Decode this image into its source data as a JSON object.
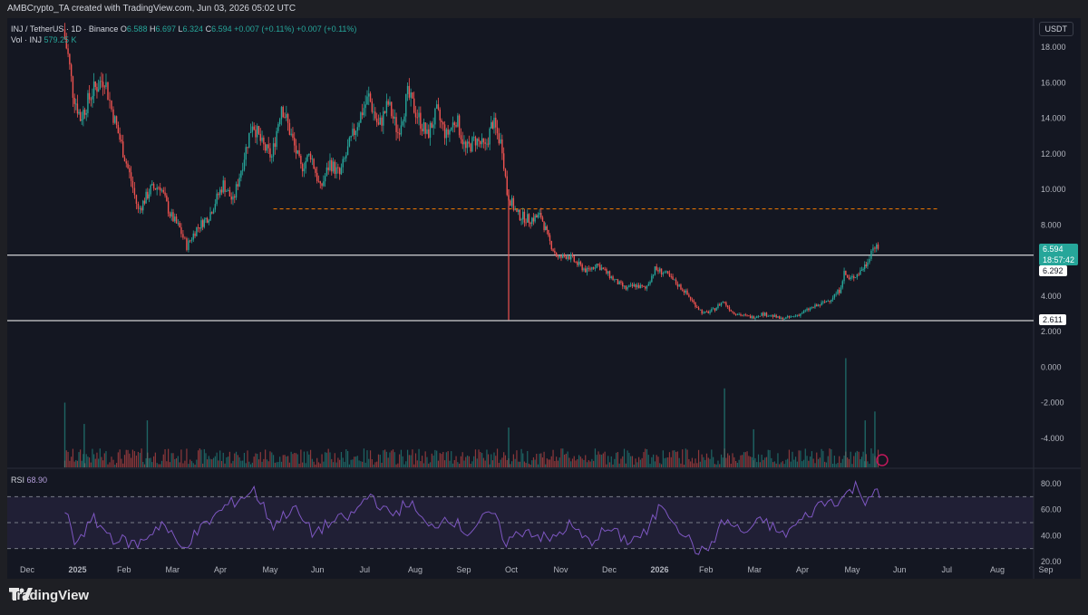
{
  "header": {
    "attribution": "AMBCrypto_TA created with TradingView.com, Jun 03, 2026 05:02 UTC"
  },
  "legend": {
    "symbol": "INJ / TetherUS · 1D · Binance",
    "open_label": "O",
    "open": "6.588",
    "high_label": "H",
    "high": "6.697",
    "low_label": "L",
    "low": "6.324",
    "close_label": "C",
    "close": "6.594",
    "change": "+0.007 (+0.11%)",
    "change2": "+0.007 (+0.11%)",
    "vol_label": "Vol · INJ",
    "vol": "579.25 K",
    "rsi_label": "RSI",
    "rsi": "68.90"
  },
  "currency": "USDT",
  "price_tags": {
    "last": "6.594",
    "countdown": "18:57:42",
    "level_mid": "6.292",
    "level_low": "2.611"
  },
  "colors": {
    "up": "#26a69a",
    "down": "#ef5350",
    "rsi": "#7e57c2",
    "dashed": "#f57c00",
    "level": "#ffffff"
  },
  "footer": {
    "brand": "TradingView"
  },
  "chart_data": {
    "type": "candlestick",
    "x_axis_labels": [
      "Dec",
      "2025",
      "Feb",
      "Mar",
      "Apr",
      "May",
      "Jun",
      "Jul",
      "Aug",
      "Sep",
      "Oct",
      "Nov",
      "Dec",
      "2026",
      "Feb",
      "Mar",
      "Apr",
      "May",
      "Jun",
      "Jul",
      "Aug",
      "Sep"
    ],
    "y_axis_labels": [
      "18.000",
      "16.000",
      "14.000",
      "12.000",
      "10.000",
      "8.000",
      "6.000",
      "4.000",
      "2.000",
      "0.000",
      "-2.000",
      "-4.000"
    ],
    "rsi_axis_labels": [
      "80.00",
      "60.00",
      "40.00",
      "20.00"
    ],
    "price_range": [
      -4.0,
      18.0
    ],
    "rsi_range": [
      20,
      80
    ],
    "rsi_bands": [
      70,
      50,
      30
    ],
    "horizontal_levels": [
      {
        "value": 6.292,
        "style": "solid"
      },
      {
        "value": 2.611,
        "style": "solid"
      },
      {
        "value": 8.9,
        "style": "dashed"
      }
    ],
    "price_path": [
      {
        "month": 1.0,
        "close": 19.0
      },
      {
        "month": 1.1,
        "close": 17.5
      },
      {
        "month": 1.2,
        "close": 15.5
      },
      {
        "month": 1.35,
        "close": 14.0
      },
      {
        "month": 1.6,
        "close": 15.5
      },
      {
        "month": 1.85,
        "close": 16.3
      },
      {
        "month": 2.0,
        "close": 14.5
      },
      {
        "month": 2.2,
        "close": 12.5
      },
      {
        "month": 2.4,
        "close": 10.5
      },
      {
        "month": 2.55,
        "close": 8.8
      },
      {
        "month": 2.8,
        "close": 10.0
      },
      {
        "month": 3.0,
        "close": 10.2
      },
      {
        "month": 3.2,
        "close": 8.6
      },
      {
        "month": 3.4,
        "close": 7.8
      },
      {
        "month": 3.55,
        "close": 6.8
      },
      {
        "month": 3.75,
        "close": 7.8
      },
      {
        "month": 4.0,
        "close": 8.5
      },
      {
        "month": 4.3,
        "close": 10.3
      },
      {
        "month": 4.5,
        "close": 9.3
      },
      {
        "month": 4.7,
        "close": 11.5
      },
      {
        "month": 4.9,
        "close": 13.8
      },
      {
        "month": 5.1,
        "close": 12.5
      },
      {
        "month": 5.3,
        "close": 11.8
      },
      {
        "month": 5.5,
        "close": 14.8
      },
      {
        "month": 5.7,
        "close": 13.0
      },
      {
        "month": 5.9,
        "close": 11.2
      },
      {
        "month": 6.1,
        "close": 12.0
      },
      {
        "month": 6.3,
        "close": 10.0
      },
      {
        "month": 6.5,
        "close": 11.5
      },
      {
        "month": 6.7,
        "close": 10.8
      },
      {
        "month": 6.9,
        "close": 12.5
      },
      {
        "month": 7.1,
        "close": 14.0
      },
      {
        "month": 7.3,
        "close": 15.2
      },
      {
        "month": 7.5,
        "close": 13.5
      },
      {
        "month": 7.7,
        "close": 14.8
      },
      {
        "month": 7.9,
        "close": 13.2
      },
      {
        "month": 8.1,
        "close": 15.3
      },
      {
        "month": 8.3,
        "close": 14.2
      },
      {
        "month": 8.5,
        "close": 13.0
      },
      {
        "month": 8.7,
        "close": 14.3
      },
      {
        "month": 8.9,
        "close": 13.0
      },
      {
        "month": 9.1,
        "close": 14.0
      },
      {
        "month": 9.3,
        "close": 12.2
      },
      {
        "month": 9.5,
        "close": 12.8
      },
      {
        "month": 9.7,
        "close": 12.3
      },
      {
        "month": 9.85,
        "close": 13.8
      },
      {
        "month": 10.05,
        "close": 12.4
      },
      {
        "month": 10.15,
        "close": 9.8
      },
      {
        "month": 10.35,
        "close": 8.6
      },
      {
        "month": 10.6,
        "close": 8.3
      },
      {
        "month": 10.85,
        "close": 8.5
      },
      {
        "month": 11.0,
        "close": 7.2
      },
      {
        "month": 11.2,
        "close": 6.1
      },
      {
        "month": 11.4,
        "close": 6.3
      },
      {
        "month": 11.6,
        "close": 5.8
      },
      {
        "month": 11.8,
        "close": 5.4
      },
      {
        "month": 12.0,
        "close": 5.8
      },
      {
        "month": 12.2,
        "close": 5.3
      },
      {
        "month": 12.4,
        "close": 4.8
      },
      {
        "month": 12.6,
        "close": 4.4
      },
      {
        "month": 12.8,
        "close": 4.6
      },
      {
        "month": 13.0,
        "close": 4.4
      },
      {
        "month": 13.2,
        "close": 5.5
      },
      {
        "month": 13.4,
        "close": 5.3
      },
      {
        "month": 13.6,
        "close": 4.8
      },
      {
        "month": 13.8,
        "close": 4.3
      },
      {
        "month": 14.0,
        "close": 3.6
      },
      {
        "month": 14.2,
        "close": 3.0
      },
      {
        "month": 14.4,
        "close": 3.2
      },
      {
        "month": 14.6,
        "close": 3.7
      },
      {
        "month": 14.8,
        "close": 3.1
      },
      {
        "month": 15.0,
        "close": 2.9
      },
      {
        "month": 15.2,
        "close": 2.8
      },
      {
        "month": 15.4,
        "close": 3.0
      },
      {
        "month": 15.6,
        "close": 2.9
      },
      {
        "month": 15.8,
        "close": 2.7
      },
      {
        "month": 16.0,
        "close": 2.8
      },
      {
        "month": 16.2,
        "close": 3.0
      },
      {
        "month": 16.4,
        "close": 3.3
      },
      {
        "month": 16.6,
        "close": 3.5
      },
      {
        "month": 16.8,
        "close": 3.8
      },
      {
        "month": 17.0,
        "close": 4.3
      },
      {
        "month": 17.1,
        "close": 5.3
      },
      {
        "month": 17.2,
        "close": 4.9
      },
      {
        "month": 17.4,
        "close": 5.3
      },
      {
        "month": 17.55,
        "close": 5.8
      },
      {
        "month": 17.7,
        "close": 6.8
      },
      {
        "month": 17.8,
        "close": 6.6
      }
    ],
    "spike": {
      "month": 10.15,
      "low": 2.65
    },
    "rsi_path": [
      {
        "month": 1.0,
        "rsi": 60
      },
      {
        "month": 1.2,
        "rsi": 35
      },
      {
        "month": 1.6,
        "rsi": 52
      },
      {
        "month": 2.0,
        "rsi": 38
      },
      {
        "month": 2.5,
        "rsi": 33
      },
      {
        "month": 3.0,
        "rsi": 50
      },
      {
        "month": 3.4,
        "rsi": 30
      },
      {
        "month": 3.8,
        "rsi": 45
      },
      {
        "month": 4.3,
        "rsi": 62
      },
      {
        "month": 4.9,
        "rsi": 75
      },
      {
        "month": 5.3,
        "rsi": 48
      },
      {
        "month": 5.7,
        "rsi": 62
      },
      {
        "month": 6.1,
        "rsi": 42
      },
      {
        "month": 6.5,
        "rsi": 50
      },
      {
        "month": 6.9,
        "rsi": 55
      },
      {
        "month": 7.3,
        "rsi": 72
      },
      {
        "month": 7.7,
        "rsi": 55
      },
      {
        "month": 8.1,
        "rsi": 66
      },
      {
        "month": 8.5,
        "rsi": 45
      },
      {
        "month": 8.9,
        "rsi": 55
      },
      {
        "month": 9.3,
        "rsi": 42
      },
      {
        "month": 9.8,
        "rsi": 58
      },
      {
        "month": 10.1,
        "rsi": 35
      },
      {
        "month": 10.5,
        "rsi": 45
      },
      {
        "month": 11.0,
        "rsi": 36
      },
      {
        "month": 11.4,
        "rsi": 48
      },
      {
        "month": 11.8,
        "rsi": 35
      },
      {
        "month": 12.2,
        "rsi": 45
      },
      {
        "month": 12.6,
        "rsi": 36
      },
      {
        "month": 13.0,
        "rsi": 42
      },
      {
        "month": 13.3,
        "rsi": 65
      },
      {
        "month": 13.6,
        "rsi": 50
      },
      {
        "month": 14.0,
        "rsi": 30
      },
      {
        "month": 14.2,
        "rsi": 26
      },
      {
        "month": 14.6,
        "rsi": 52
      },
      {
        "month": 15.0,
        "rsi": 42
      },
      {
        "month": 15.4,
        "rsi": 52
      },
      {
        "month": 15.8,
        "rsi": 40
      },
      {
        "month": 16.2,
        "rsi": 52
      },
      {
        "month": 16.6,
        "rsi": 65
      },
      {
        "month": 17.0,
        "rsi": 68
      },
      {
        "month": 17.3,
        "rsi": 78
      },
      {
        "month": 17.5,
        "rsi": 68
      },
      {
        "month": 17.7,
        "rsi": 75
      },
      {
        "month": 17.8,
        "rsi": 68.9
      }
    ],
    "volume_tall_bars": [
      {
        "month": 1.0,
        "value": -2.0
      },
      {
        "month": 1.4,
        "value": -3.2
      },
      {
        "month": 2.7,
        "value": -3.0
      },
      {
        "month": 10.15,
        "value": -3.4
      },
      {
        "month": 14.6,
        "value": -1.2
      },
      {
        "month": 15.2,
        "value": -3.5
      },
      {
        "month": 17.1,
        "value": 0.5
      },
      {
        "month": 17.5,
        "value": -3.0
      },
      {
        "month": 17.7,
        "value": -2.5
      }
    ]
  }
}
